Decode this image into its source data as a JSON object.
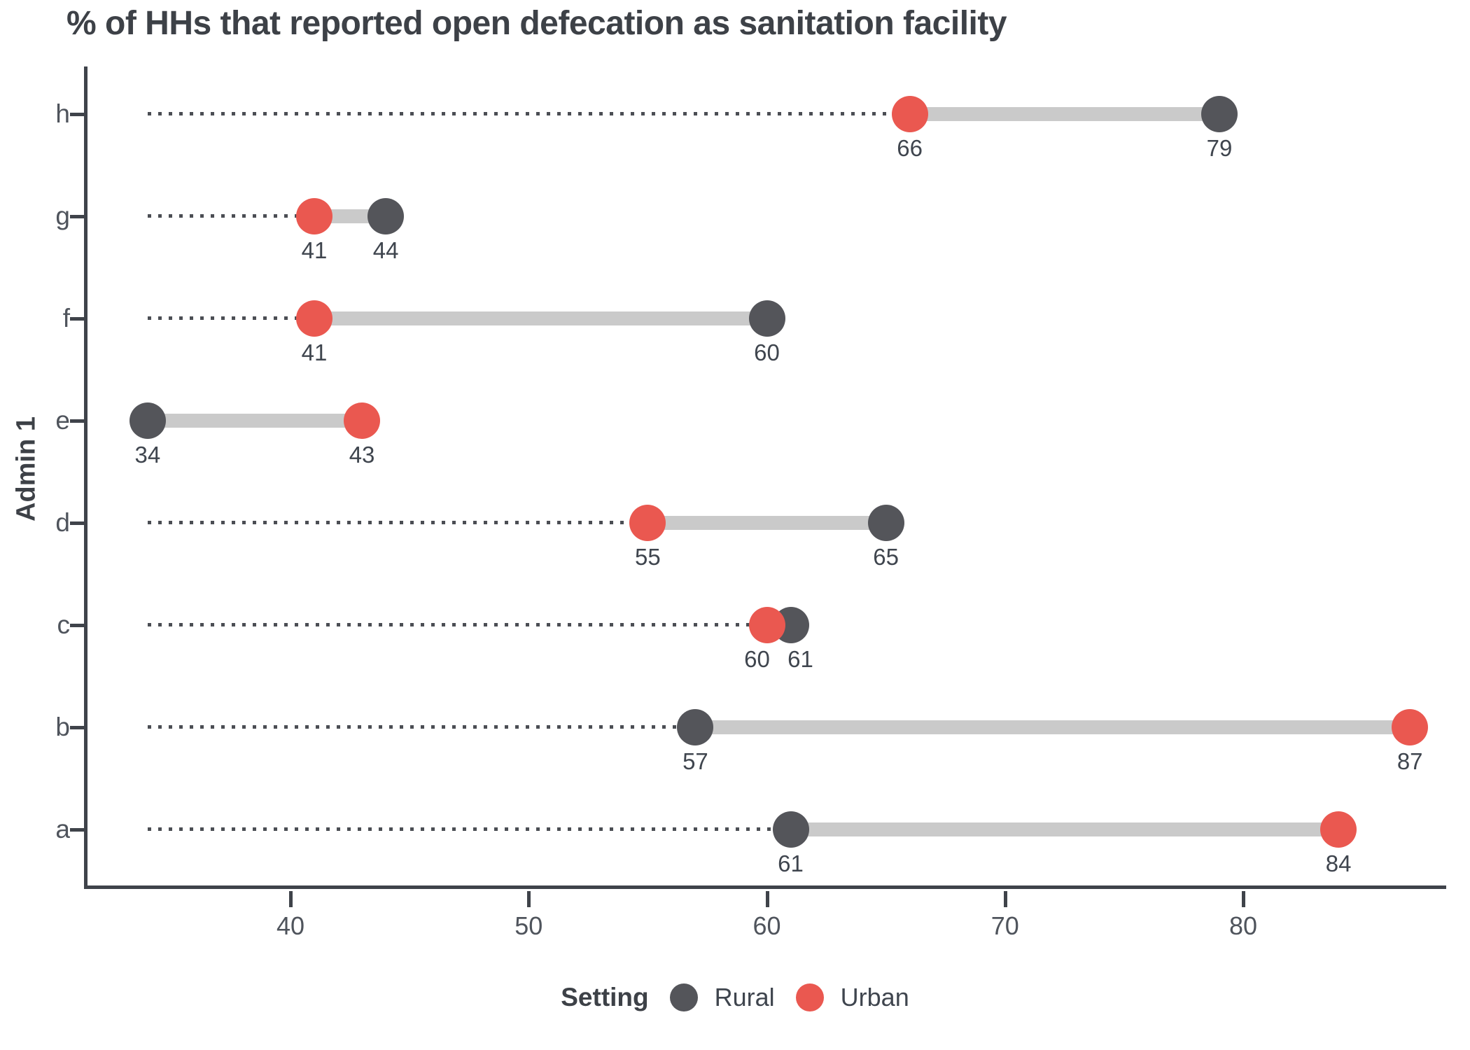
{
  "title": "% of HHs that reported open defecation as sanitation facility",
  "legend": {
    "title": "Setting",
    "items": [
      {
        "label": "Rural",
        "color": "#54555A"
      },
      {
        "label": "Urban",
        "color": "#EA5850"
      }
    ]
  },
  "colors": {
    "rural": "#54555A",
    "urban": "#EA5850",
    "range_bar": "#CACACA",
    "leader_line": "#4B4E54",
    "axis": "#3F434A",
    "title_text": "#3D4147",
    "tick_text": "#4F545C",
    "value_text": "#3F454E"
  },
  "chart_data": {
    "type": "dumbbell",
    "title": "% of HHs that reported open defecation as sanitation facility",
    "xlabel": "",
    "ylabel": "Admin 1",
    "categories": [
      "h",
      "g",
      "f",
      "e",
      "d",
      "c",
      "b",
      "a"
    ],
    "series": [
      {
        "name": "Rural",
        "color": "#54555A",
        "values": [
          79,
          44,
          60,
          34,
          65,
          61,
          57,
          61
        ]
      },
      {
        "name": "Urban",
        "color": "#EA5850",
        "values": [
          66,
          41,
          41,
          43,
          55,
          60,
          87,
          84
        ]
      }
    ],
    "x_ticks": [
      40,
      50,
      60,
      70,
      80
    ],
    "xlim": [
      31.3,
      88.5
    ],
    "grid": false,
    "value_labels_shown": true,
    "leader_line": "dotted line from global minimum (34) to each row's smaller value",
    "legend_position": "bottom"
  }
}
